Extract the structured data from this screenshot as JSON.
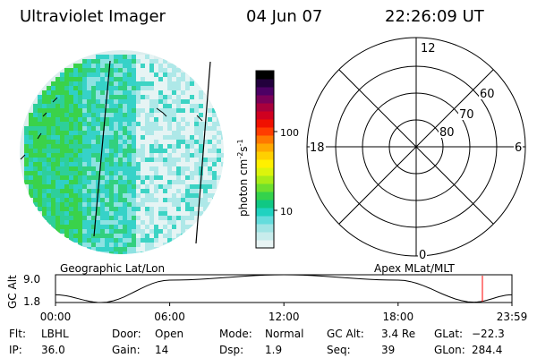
{
  "header": {
    "title": "Ultraviolet Imager",
    "date": "04 Jun 07",
    "time": "22:26:09 UT"
  },
  "colorbar": {
    "unit_label": "photon cm",
    "unit_exp1": "-2",
    "unit_mid": "s",
    "unit_exp2": "-1",
    "tick_100": "100",
    "tick_10": "10",
    "colors": [
      "#e8f4f4",
      "#c8ecec",
      "#a0e4e4",
      "#64dcdc",
      "#20d2c0",
      "#10c884",
      "#34d24c",
      "#6ee02e",
      "#a8ec18",
      "#dcf40c",
      "#fff000",
      "#ffd000",
      "#ffa800",
      "#ff7800",
      "#ff3c00",
      "#f01000",
      "#d00020",
      "#a8003c",
      "#7a0058",
      "#4c0064",
      "#22003c",
      "#000000"
    ]
  },
  "polar": {
    "mlt_12": "12",
    "mlt_18": "18",
    "mlt_6": "6",
    "mlt_0": "0",
    "lat_60": "60",
    "lat_70": "70",
    "lat_80": "80"
  },
  "orbit": {
    "ylabel": "GC Alt",
    "y_max": "9.0",
    "y_min": "1.8",
    "left_label": "Geographic Lat/Lon",
    "right_label": "Apex MLat/MLT",
    "x_ticks": [
      "00:00",
      "06:00",
      "12:00",
      "18:00",
      "23:59"
    ],
    "marker_color": "#ff0000"
  },
  "chart_data": {
    "type": "line",
    "xlabel": "",
    "ylabel": "GC Alt",
    "x": [
      "00:00",
      "02:24",
      "06:00",
      "12:00",
      "18:00",
      "22:00",
      "22:26",
      "23:59"
    ],
    "values": [
      3.8,
      1.8,
      7.6,
      9.0,
      7.6,
      1.9,
      3.4,
      3.8
    ],
    "ylim": [
      1.8,
      9.0
    ],
    "current_time": "22:26"
  },
  "status": {
    "row1": [
      {
        "key": "Flt:",
        "value": "LBHL"
      },
      {
        "key": "Door:",
        "value": "Open"
      },
      {
        "key": "Mode:",
        "value": "Normal"
      },
      {
        "key": "GC Alt:",
        "value": "3.4 Re"
      },
      {
        "key": "GLat:",
        "value": "−22.3"
      }
    ],
    "row2": [
      {
        "key": "IP:",
        "value": "36.0"
      },
      {
        "key": "Gain:",
        "value": "14"
      },
      {
        "key": "Dsp:",
        "value": "1.9"
      },
      {
        "key": "Seq:",
        "value": "39"
      },
      {
        "key": "GLon:",
        "value": "284.4"
      }
    ]
  }
}
